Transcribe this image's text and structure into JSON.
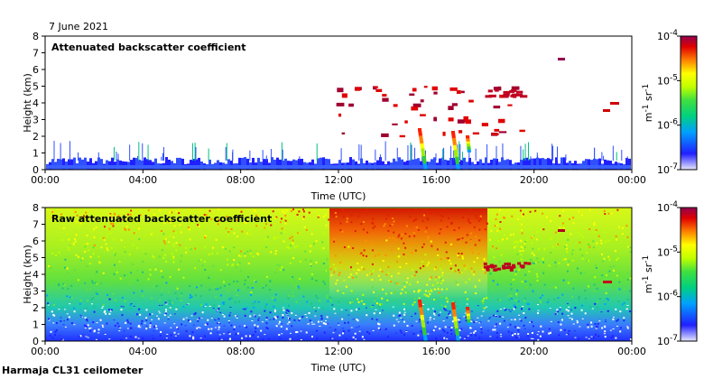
{
  "date_label": "7 June 2021",
  "footer_label": "Harmaja CL31 ceilometer",
  "colorbar": {
    "ticks": [
      {
        "mant": "10",
        "exp": "-4"
      },
      {
        "mant": "10",
        "exp": "-5"
      },
      {
        "mant": "10",
        "exp": "-6"
      },
      {
        "mant": "10",
        "exp": "-7"
      }
    ],
    "unit": {
      "m": "m",
      "m_exp": "-1",
      "sr": "sr",
      "sr_exp": "-1"
    },
    "colors": [
      "#d8d8ff",
      "#2020ff",
      "#00a0ff",
      "#00d080",
      "#40e040",
      "#c0ff00",
      "#ffff00",
      "#ff8000",
      "#e00000",
      "#900050"
    ]
  },
  "chart_data": [
    {
      "type": "heatmap",
      "title": "Attenuated backscatter coefficient",
      "xlabel": "Time (UTC)",
      "ylabel": "Height (km)",
      "x_ticks": [
        "00:00",
        "04:00",
        "08:00",
        "12:00",
        "16:00",
        "20:00",
        "00:00"
      ],
      "y_ticks": [
        "0",
        "1",
        "2",
        "3",
        "4",
        "5",
        "6",
        "7",
        "8"
      ],
      "xlim_hours": [
        0,
        24
      ],
      "ylim_km": [
        0,
        8
      ],
      "scale": "log",
      "colorbar_range": [
        "1e-7",
        "1e-4"
      ],
      "unit": "m^-1 sr^-1"
    },
    {
      "type": "heatmap",
      "title": "Raw attenuated backscatter coefficient",
      "xlabel": "Time (UTC)",
      "ylabel": "Height (km)",
      "x_ticks": [
        "00:00",
        "04:00",
        "08:00",
        "12:00",
        "16:00",
        "20:00",
        "00:00"
      ],
      "y_ticks": [
        "0",
        "1",
        "2",
        "3",
        "4",
        "5",
        "6",
        "7",
        "8"
      ],
      "xlim_hours": [
        0,
        24
      ],
      "ylim_km": [
        0,
        8
      ],
      "scale": "log",
      "colorbar_range": [
        "1e-7",
        "1e-4"
      ],
      "unit": "m^-1 sr^-1"
    }
  ]
}
